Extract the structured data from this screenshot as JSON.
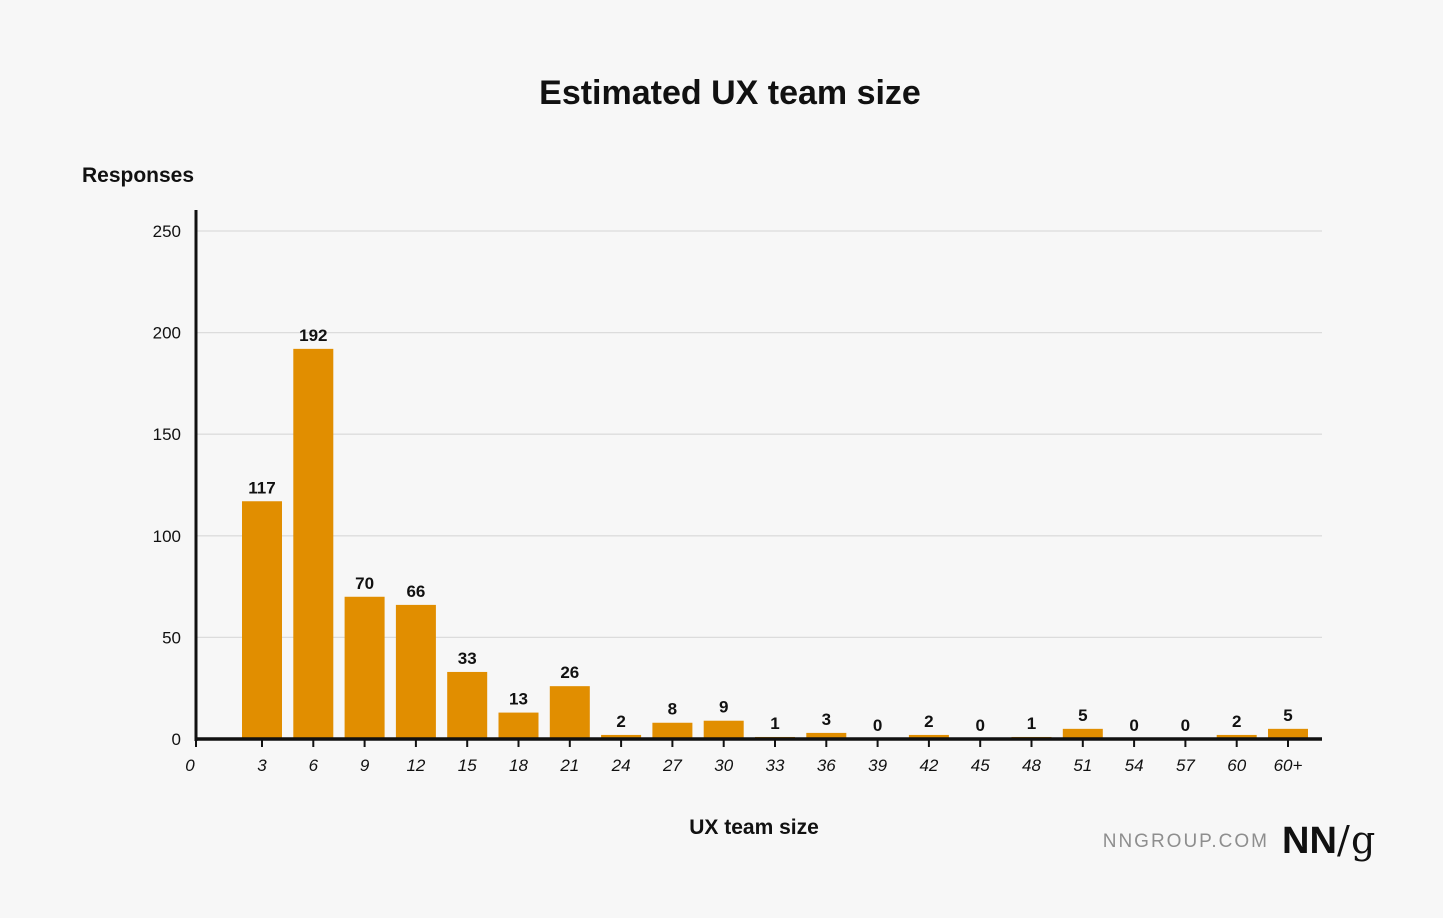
{
  "chart_data": {
    "type": "bar",
    "title": "Estimated UX team size",
    "xlabel": "UX team size",
    "ylabel": "Responses",
    "ylim": [
      0,
      250
    ],
    "yticks": [
      0,
      50,
      100,
      150,
      200,
      250
    ],
    "grid": true,
    "x_origin_label": "0",
    "categories": [
      "3",
      "6",
      "9",
      "12",
      "15",
      "18",
      "21",
      "24",
      "27",
      "30",
      "33",
      "36",
      "39",
      "42",
      "45",
      "48",
      "51",
      "54",
      "57",
      "60",
      "60+"
    ],
    "values": [
      117,
      192,
      70,
      66,
      33,
      13,
      26,
      2,
      8,
      9,
      1,
      3,
      0,
      2,
      0,
      1,
      5,
      0,
      0,
      2,
      5
    ],
    "data_labels": [
      "117",
      "192",
      "70",
      "66",
      "33",
      "13",
      "26",
      "2",
      "8",
      "9",
      "1",
      "3",
      "0",
      "2",
      "0",
      "1",
      "5",
      "0",
      "0",
      "2",
      "5"
    ],
    "colors": {
      "bar": "#e18e00",
      "grid": "#dcdcdc",
      "axis": "#111111",
      "background": "#f7f7f7"
    }
  },
  "footer": {
    "url": "NNGROUP.COM",
    "logo_nn": "NN",
    "logo_slash": "/",
    "logo_g": "g"
  }
}
